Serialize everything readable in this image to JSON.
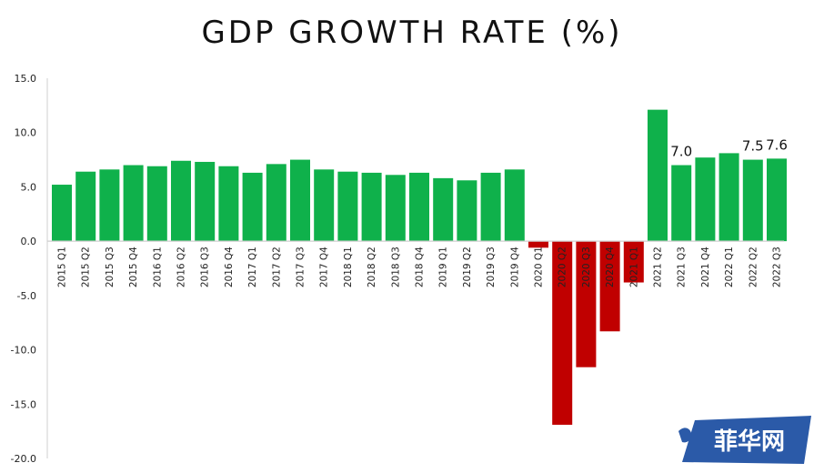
{
  "chart_data": {
    "type": "bar",
    "title": "GDP GROWTH RATE (%)",
    "xlabel": "",
    "ylabel": "",
    "ylim": [
      -20,
      15
    ],
    "yticks": [
      "15.0",
      "10.0",
      "5.0",
      "0.0",
      "-5.0",
      "-10.0",
      "-15.0",
      "-20.0"
    ],
    "ytick_values": [
      15,
      10,
      5,
      0,
      -5,
      -10,
      -15,
      -20
    ],
    "categories": [
      "2015 Q1",
      "2015 Q2",
      "2015 Q3",
      "2015 Q4",
      "2016 Q1",
      "2016 Q2",
      "2016 Q3",
      "2016 Q4",
      "2017 Q1",
      "2017 Q2",
      "2017 Q3",
      "2017 Q4",
      "2018 Q1",
      "2018 Q2",
      "2018 Q3",
      "2018 Q4",
      "2019 Q1",
      "2019 Q2",
      "2019 Q3",
      "2019 Q4",
      "2020 Q1",
      "2020 Q2",
      "2020 Q3",
      "2020 Q4",
      "2021 Q1",
      "2021 Q2",
      "2021 Q3",
      "2021 Q4",
      "2022 Q1",
      "2022 Q2",
      "2022 Q3"
    ],
    "values": [
      5.2,
      6.4,
      6.6,
      7.0,
      6.9,
      7.4,
      7.3,
      6.9,
      6.3,
      7.1,
      7.5,
      6.6,
      6.4,
      6.3,
      6.1,
      6.3,
      5.8,
      5.6,
      6.3,
      6.6,
      -0.6,
      -16.9,
      -11.6,
      -8.3,
      -3.8,
      12.1,
      7.0,
      7.7,
      8.1,
      7.5,
      7.6
    ],
    "data_labels": [
      {
        "index": 26,
        "text": "7.0"
      },
      {
        "index": 29,
        "text": "7.5"
      },
      {
        "index": 30,
        "text": "7.6"
      }
    ],
    "colors": {
      "positive": "#0fb14b",
      "negative": "#c00000",
      "axis": "#cfcfcf"
    },
    "grid": false,
    "legend": "none"
  },
  "watermark": {
    "text": "菲华网",
    "colors": {
      "badge": "#2b5aa8",
      "text": "#ffffff"
    }
  }
}
